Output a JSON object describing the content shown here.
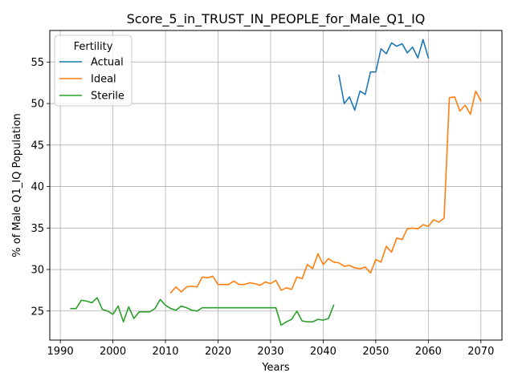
{
  "chart_data": {
    "type": "line",
    "title": "Score_5_in_TRUST_IN_PEOPLE_for_Male_Q1_IQ",
    "xlabel": "Years",
    "ylabel": "% of Male Q1_IQ Population",
    "xlim": [
      1988,
      2074
    ],
    "ylim": [
      21.5,
      58.8
    ],
    "xticks": [
      1990,
      2000,
      2010,
      2020,
      2030,
      2040,
      2050,
      2060,
      2070
    ],
    "yticks": [
      25,
      30,
      35,
      40,
      45,
      50,
      55
    ],
    "grid": true,
    "legend": {
      "title": "Fertility",
      "placement": "upper-left"
    },
    "series": [
      {
        "name": "Actual",
        "color": "#1f77b4",
        "x": [
          2043,
          2044,
          2045,
          2046,
          2047,
          2048,
          2049,
          2050,
          2051,
          2052,
          2053,
          2054,
          2055,
          2056,
          2057,
          2058,
          2059,
          2060
        ],
        "y": [
          53.4,
          50.0,
          50.8,
          49.2,
          51.5,
          51.1,
          53.8,
          53.8,
          56.6,
          56.0,
          57.3,
          56.9,
          57.2,
          56.1,
          56.8,
          55.5,
          57.7,
          55.5
        ]
      },
      {
        "name": "Ideal",
        "color": "#ff7f0e",
        "x": [
          2011,
          2012,
          2013,
          2014,
          2015,
          2016,
          2017,
          2018,
          2019,
          2020,
          2021,
          2022,
          2023,
          2024,
          2025,
          2026,
          2027,
          2028,
          2029,
          2030,
          2031,
          2032,
          2033,
          2034,
          2035,
          2036,
          2037,
          2038,
          2039,
          2040,
          2041,
          2042,
          2043,
          2044,
          2045,
          2046,
          2047,
          2048,
          2049,
          2050,
          2051,
          2052,
          2053,
          2054,
          2055,
          2056,
          2057,
          2058,
          2059,
          2060,
          2061,
          2062,
          2063,
          2064,
          2065,
          2066,
          2067,
          2068,
          2069,
          2070
        ],
        "y": [
          27.2,
          27.9,
          27.3,
          27.9,
          28.0,
          27.9,
          29.1,
          29.0,
          29.2,
          28.2,
          28.2,
          28.2,
          28.6,
          28.2,
          28.2,
          28.4,
          28.3,
          28.1,
          28.5,
          28.3,
          28.7,
          27.5,
          27.8,
          27.6,
          29.1,
          28.9,
          30.6,
          30.1,
          31.9,
          30.6,
          31.3,
          30.9,
          30.8,
          30.4,
          30.5,
          30.2,
          30.1,
          30.3,
          29.6,
          31.2,
          30.9,
          32.8,
          32.1,
          33.8,
          33.6,
          34.9,
          35.0,
          34.9,
          35.4,
          35.2,
          36.0,
          35.7,
          36.2,
          50.7,
          50.8,
          49.1,
          49.8,
          48.7,
          51.5,
          50.3
        ]
      },
      {
        "name": "Sterile",
        "color": "#2ca02c",
        "x": [
          1992,
          1993,
          1994,
          1995,
          1996,
          1997,
          1998,
          1999,
          2000,
          2001,
          2002,
          2003,
          2004,
          2005,
          2006,
          2007,
          2008,
          2009,
          2010,
          2011,
          2012,
          2013,
          2014,
          2015,
          2016,
          2017,
          2018,
          2019,
          2020,
          2021,
          2022,
          2023,
          2024,
          2025,
          2026,
          2027,
          2028,
          2029,
          2030,
          2031,
          2032,
          2033,
          2034,
          2035,
          2036,
          2037,
          2038,
          2039,
          2040,
          2041,
          2042
        ],
        "y": [
          25.3,
          25.3,
          26.3,
          26.2,
          26.0,
          26.6,
          25.2,
          25.0,
          24.6,
          25.6,
          23.7,
          25.5,
          24.1,
          24.9,
          24.9,
          24.9,
          25.3,
          26.4,
          25.7,
          25.3,
          25.1,
          25.6,
          25.4,
          25.1,
          25.0,
          25.4,
          25.4,
          25.4,
          25.4,
          25.4,
          25.4,
          25.4,
          25.4,
          25.4,
          25.4,
          25.4,
          25.4,
          25.4,
          25.4,
          25.4,
          23.3,
          23.7,
          24.0,
          25.0,
          23.8,
          23.7,
          23.7,
          24.0,
          23.9,
          24.1,
          25.7
        ]
      }
    ]
  }
}
